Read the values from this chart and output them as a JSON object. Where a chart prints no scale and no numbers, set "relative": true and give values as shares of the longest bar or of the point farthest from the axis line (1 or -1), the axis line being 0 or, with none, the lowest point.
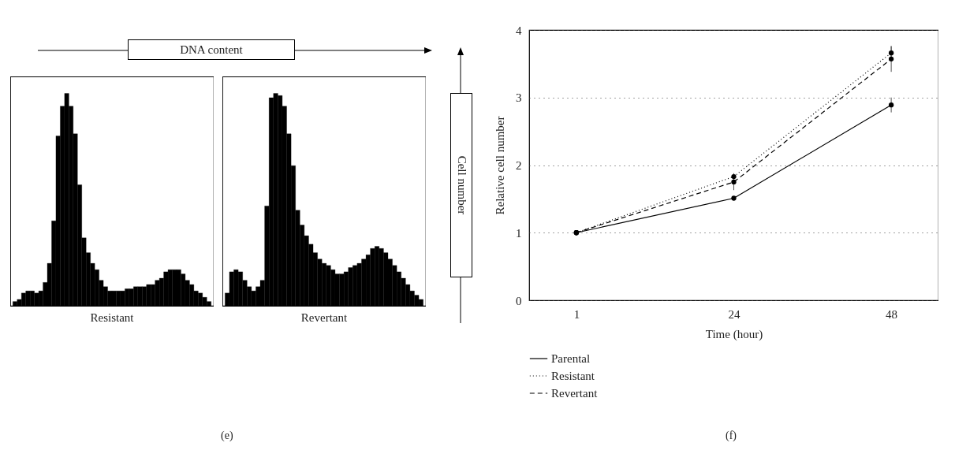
{
  "chart_data": [
    {
      "type": "bar",
      "title": "Resistant",
      "xlabel": "DNA content",
      "relative": true,
      "color": "#000000",
      "categories": [
        null,
        null,
        null,
        null,
        null,
        null,
        null,
        null,
        null,
        null,
        null,
        null,
        null,
        null,
        null,
        null,
        null,
        null,
        null,
        null,
        null,
        null,
        null,
        null,
        null,
        null,
        null,
        null,
        null,
        null,
        null,
        null,
        null,
        null,
        null,
        null,
        null,
        null,
        null,
        null,
        null,
        null,
        null,
        null,
        null,
        null
      ],
      "values": [
        0.02,
        0.03,
        0.06,
        0.07,
        0.07,
        0.06,
        0.07,
        0.11,
        0.2,
        0.4,
        0.8,
        0.94,
        1,
        0.94,
        0.81,
        0.57,
        0.32,
        0.25,
        0.2,
        0.17,
        0.12,
        0.09,
        0.07,
        0.07,
        0.07,
        0.07,
        0.08,
        0.08,
        0.09,
        0.09,
        0.09,
        0.1,
        0.1,
        0.12,
        0.13,
        0.16,
        0.17,
        0.17,
        0.17,
        0.15,
        0.12,
        0.1,
        0.07,
        0.06,
        0.04,
        0.02
      ]
    },
    {
      "type": "bar",
      "title": "Revertant",
      "ylabel": "Cell number",
      "relative": true,
      "color": "#000000",
      "annotations": [
        "(e)"
      ],
      "categories": [
        null,
        null,
        null,
        null,
        null,
        null,
        null,
        null,
        null,
        null,
        null,
        null,
        null,
        null,
        null,
        null,
        null,
        null,
        null,
        null,
        null,
        null,
        null,
        null,
        null,
        null,
        null,
        null,
        null,
        null,
        null,
        null,
        null,
        null,
        null,
        null,
        null,
        null,
        null,
        null,
        null,
        null,
        null,
        null,
        null
      ],
      "values": [
        0.06,
        0.16,
        0.17,
        0.16,
        0.12,
        0.09,
        0.07,
        0.09,
        0.12,
        0.47,
        0.98,
        1,
        0.99,
        0.94,
        0.81,
        0.66,
        0.45,
        0.38,
        0.33,
        0.29,
        0.25,
        0.22,
        0.2,
        0.19,
        0.17,
        0.15,
        0.15,
        0.16,
        0.18,
        0.19,
        0.2,
        0.22,
        0.24,
        0.27,
        0.28,
        0.27,
        0.25,
        0.22,
        0.19,
        0.16,
        0.13,
        0.1,
        0.07,
        0.05,
        0.03
      ]
    },
    {
      "type": "line",
      "xlabel": "Time (hour)",
      "ylabel": "Relative cell number",
      "categories": [
        "1",
        "24",
        "48"
      ],
      "ylim": [
        0,
        4
      ],
      "yticks": [
        0,
        1,
        2,
        3,
        4
      ],
      "grid": "y",
      "legend": "bottom",
      "marker": "circle",
      "annotations": [
        "(f)"
      ],
      "series": [
        {
          "name": "Parental",
          "color": "#000000",
          "line_style": "solid",
          "values": [
            1,
            1.51,
            2.89
          ],
          "errors": [
            null,
            0.03,
            0.11
          ]
        },
        {
          "name": "Resistant",
          "color": "#000000",
          "line_style": "dotted",
          "values": [
            1,
            1.83,
            3.66
          ],
          "errors": [
            null,
            0.05,
            0.1
          ]
        },
        {
          "name": "Revertant",
          "color": "#000000",
          "line_style": "dashed",
          "values": [
            1,
            1.75,
            3.57
          ],
          "errors": [
            null,
            0.12,
            0.19
          ]
        }
      ]
    }
  ]
}
